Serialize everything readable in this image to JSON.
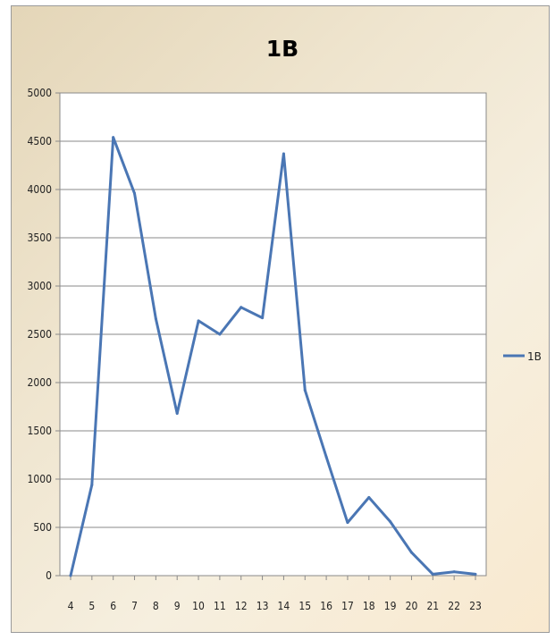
{
  "chart_data": {
    "type": "line",
    "title": "1B",
    "xlabel": "",
    "ylabel": "",
    "categories": [
      "4",
      "5",
      "6",
      "7",
      "8",
      "9",
      "10",
      "11",
      "12",
      "13",
      "14",
      "15",
      "16",
      "17",
      "18",
      "19",
      "20",
      "21",
      "22",
      "23"
    ],
    "ylim": [
      0,
      5000
    ],
    "yticks": [
      "0",
      "500",
      "1000",
      "1500",
      "2000",
      "2500",
      "3000",
      "3500",
      "4000",
      "4500",
      "5000"
    ],
    "grid": true,
    "legend_position": "right",
    "series": [
      {
        "name": "1B",
        "color": "#4a76b4",
        "values": [
          0,
          940,
          4540,
          3960,
          2660,
          1680,
          2640,
          2500,
          2780,
          2670,
          4370,
          1920,
          1230,
          550,
          810,
          560,
          240,
          15,
          40,
          15
        ]
      }
    ]
  }
}
